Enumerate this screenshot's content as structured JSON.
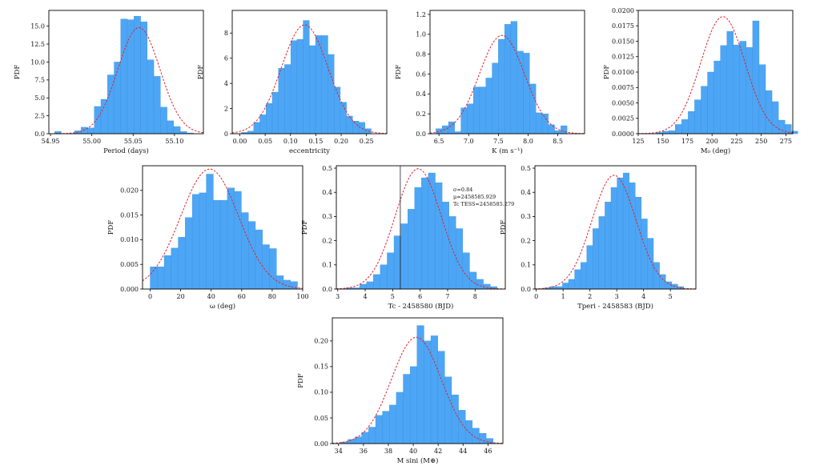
{
  "chart_data": [
    {
      "type": "bar",
      "xlabel": "Period (days)",
      "ylabel": "PDF",
      "xlim": [
        54.948,
        55.135
      ],
      "ylim": [
        0,
        17.2
      ],
      "xticks": [
        54.95,
        55.0,
        55.05,
        55.1
      ],
      "xtick_labels": [
        "54.95",
        "55.00",
        "55.05",
        "55.10"
      ],
      "yticks": [
        0,
        2.5,
        5,
        7.5,
        10,
        12.5,
        15
      ],
      "ytick_labels": [
        "0.0",
        "2.5",
        "5.0",
        "7.5",
        "10.0",
        "12.5",
        "15.0"
      ],
      "bins_start": 54.955,
      "bin_width": 0.008,
      "values": [
        0.3,
        0,
        0,
        0.4,
        0.9,
        0.8,
        3.8,
        4.8,
        8.2,
        10.0,
        16.0,
        15.9,
        16.4,
        15.6,
        10.3,
        8.0,
        3.7,
        1.8,
        1.0,
        0.3,
        0.1
      ],
      "fit": {
        "mu": 55.057,
        "sigma": 0.0255
      },
      "annotations": []
    },
    {
      "type": "bar",
      "xlabel": "eccentricity",
      "ylabel": "PDF",
      "xlim": [
        -0.015,
        0.29
      ],
      "ylim": [
        0,
        9.8
      ],
      "xticks": [
        0.0,
        0.05,
        0.1,
        0.15,
        0.2,
        0.25
      ],
      "xtick_labels": [
        "0.00",
        "0.05",
        "0.10",
        "0.15",
        "0.20",
        "0.25"
      ],
      "yticks": [
        0,
        2,
        4,
        6,
        8
      ],
      "ytick_labels": [
        "0",
        "2",
        "4",
        "6",
        "8"
      ],
      "bins_start": 0.003,
      "bin_width": 0.0122,
      "values": [
        0.1,
        0.2,
        0.9,
        1.5,
        2.4,
        3.3,
        5.2,
        5.5,
        7.4,
        7.5,
        9.0,
        7.0,
        7.8,
        7.8,
        6.3,
        3.7,
        2.5,
        1.4,
        1.0,
        0.9,
        0.4
      ],
      "fit": {
        "mu": 0.128,
        "sigma": 0.046
      },
      "annotations": []
    },
    {
      "type": "bar",
      "xlabel": "K (m s⁻¹)",
      "ylabel": "PDF",
      "xlim": [
        6.35,
        8.95
      ],
      "ylim": [
        0,
        1.24
      ],
      "xticks": [
        6.5,
        7.0,
        7.5,
        8.0,
        8.5
      ],
      "xtick_labels": [
        "6.5",
        "7.0",
        "7.5",
        "8.0",
        "8.5"
      ],
      "yticks": [
        0,
        0.2,
        0.4,
        0.6,
        0.8,
        1.0,
        1.2
      ],
      "ytick_labels": [
        "0.0",
        "0.2",
        "0.4",
        "0.6",
        "0.8",
        "1.0",
        "1.2"
      ],
      "bins_start": 6.45,
      "bin_width": 0.105,
      "values": [
        0.05,
        0.08,
        0.12,
        0.02,
        0.26,
        0.3,
        0.47,
        0.47,
        0.56,
        0.71,
        0.95,
        1.1,
        1.13,
        0.83,
        0.81,
        0.5,
        0.21,
        0.2,
        0.09,
        0.03,
        0.08
      ],
      "fit": {
        "mu": 7.56,
        "sigma": 0.38
      },
      "annotations": []
    },
    {
      "type": "bar",
      "xlabel": "M₀ (deg)",
      "ylabel": "PDF",
      "xlim": [
        125,
        282
      ],
      "ylim": [
        0,
        0.02
      ],
      "xticks": [
        125,
        150,
        175,
        200,
        225,
        250,
        275
      ],
      "xtick_labels": [
        "125",
        "150",
        "175",
        "200",
        "225",
        "250",
        "275"
      ],
      "yticks": [
        0,
        0.0025,
        0.005,
        0.0075,
        0.01,
        0.0125,
        0.015,
        0.0175,
        0.02
      ],
      "ytick_labels": [
        "0.0000",
        "0.0025",
        "0.0050",
        "0.0075",
        "0.0100",
        "0.0125",
        "0.0150",
        "0.0175",
        "0.0200"
      ],
      "bins_start": 143,
      "bin_width": 6.55,
      "values": [
        0.0002,
        0.0004,
        0.0005,
        0.0015,
        0.0023,
        0.0036,
        0.0055,
        0.0077,
        0.01,
        0.0118,
        0.0143,
        0.0166,
        0.0144,
        0.015,
        0.014,
        0.0183,
        0.0112,
        0.007,
        0.0052,
        0.0022,
        0.0015,
        0.0004
      ],
      "fit": {
        "mu": 211,
        "sigma": 22.5
      },
      "annotations": []
    },
    {
      "type": "bar",
      "xlabel": "ω (deg)",
      "ylabel": "PDF",
      "xlim": [
        -5,
        100
      ],
      "ylim": [
        0,
        0.025
      ],
      "xticks": [
        0,
        20,
        40,
        60,
        80,
        100
      ],
      "xtick_labels": [
        "0",
        "20",
        "40",
        "60",
        "80",
        "100"
      ],
      "yticks": [
        0,
        0.005,
        0.01,
        0.015,
        0.02
      ],
      "ytick_labels": [
        "0.000",
        "0.005",
        "0.010",
        "0.015",
        "0.020"
      ],
      "bins_start": 0,
      "bin_width": 4.6,
      "values": [
        0.0045,
        0.0045,
        0.0068,
        0.0083,
        0.0105,
        0.0145,
        0.0192,
        0.0195,
        0.0233,
        0.018,
        0.018,
        0.0205,
        0.0198,
        0.0155,
        0.0137,
        0.012,
        0.009,
        0.0082,
        0.0027,
        0.0018,
        0.0015
      ],
      "fit": {
        "mu": 39,
        "sigma": 19
      },
      "annotations": []
    },
    {
      "type": "bar",
      "xlabel": "Tc - 2458580 (BJD)",
      "ylabel": "PDF",
      "xlim": [
        2.95,
        9.1
      ],
      "ylim": [
        0,
        0.51
      ],
      "xticks": [
        3,
        4,
        5,
        6,
        7,
        8
      ],
      "xtick_labels": [
        "3",
        "4",
        "5",
        "6",
        "7",
        "8"
      ],
      "yticks": [
        0,
        0.1,
        0.2,
        0.3,
        0.4,
        0.5
      ],
      "ytick_labels": [
        "0.0",
        "0.1",
        "0.2",
        "0.3",
        "0.4",
        "0.5"
      ],
      "bins_start": 3.3,
      "bin_width": 0.25,
      "values": [
        0.005,
        0.005,
        0.02,
        0.03,
        0.06,
        0.1,
        0.15,
        0.22,
        0.27,
        0.33,
        0.42,
        0.46,
        0.48,
        0.44,
        0.36,
        0.3,
        0.25,
        0.15,
        0.07,
        0.04,
        0.02,
        0.01
      ],
      "fit": {
        "mu": 5.929,
        "sigma": 0.84
      },
      "vline": 5.279,
      "annotations": [
        "σ=0.84",
        "μ=2458585.929",
        "Tc TESS=2458585.279"
      ]
    },
    {
      "type": "bar",
      "xlabel": "Tperi - 2458583 (BJD)",
      "ylabel": "PDF",
      "xlim": [
        -0.05,
        5.95
      ],
      "ylim": [
        0,
        0.51
      ],
      "xticks": [
        0,
        1,
        2,
        3,
        4,
        5
      ],
      "xtick_labels": [
        "0",
        "1",
        "2",
        "3",
        "4",
        "5"
      ],
      "yticks": [
        0,
        0.1,
        0.2,
        0.3,
        0.4,
        0.5
      ],
      "ytick_labels": [
        "0.0",
        "0.1",
        "0.2",
        "0.3",
        "0.4",
        "0.5"
      ],
      "bins_start": 0.3,
      "bin_width": 0.226,
      "values": [
        0.005,
        0.01,
        0.01,
        0.025,
        0.04,
        0.08,
        0.11,
        0.18,
        0.25,
        0.3,
        0.36,
        0.42,
        0.46,
        0.48,
        0.44,
        0.38,
        0.29,
        0.21,
        0.11,
        0.06,
        0.03,
        0.02,
        0.01
      ],
      "fit": {
        "mu": 2.9,
        "sigma": 0.82
      },
      "annotations": []
    },
    {
      "type": "bar",
      "xlabel": "M sini (M⊕)",
      "ylabel": "PDF",
      "xlim": [
        33.5,
        47.2
      ],
      "ylim": [
        0,
        0.245
      ],
      "xticks": [
        34,
        36,
        38,
        40,
        42,
        44,
        46
      ],
      "xtick_labels": [
        "34",
        "36",
        "38",
        "40",
        "42",
        "44",
        "46"
      ],
      "yticks": [
        0,
        0.05,
        0.1,
        0.15,
        0.2
      ],
      "ytick_labels": [
        "0.00",
        "0.05",
        "0.10",
        "0.15",
        "0.20"
      ],
      "bins_start": 34.2,
      "bin_width": 0.555,
      "values": [
        0.003,
        0.008,
        0.013,
        0.022,
        0.032,
        0.055,
        0.063,
        0.075,
        0.1,
        0.135,
        0.15,
        0.23,
        0.2,
        0.21,
        0.18,
        0.13,
        0.095,
        0.065,
        0.045,
        0.03,
        0.02,
        0.01
      ],
      "fit": {
        "mu": 40.25,
        "sigma": 2.0
      },
      "annotations": []
    }
  ]
}
